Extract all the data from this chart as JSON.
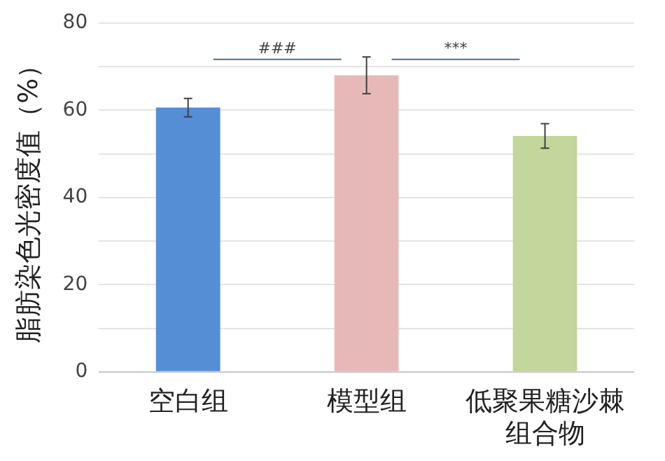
{
  "chart_data": {
    "type": "bar",
    "ylabel": "脂肪染色光密度值（%）",
    "categories": [
      "空白组",
      "模型组",
      "低聚果糖沙棘组合物"
    ],
    "values": [
      60.6,
      68.0,
      54.1
    ],
    "errors": [
      2.1,
      4.2,
      2.8
    ],
    "colors": [
      "#558ed5",
      "#e6b9b8",
      "#c3d69b"
    ],
    "ylim": [
      0,
      80
    ],
    "yticks": [
      0,
      {
        "value": 10,
        "label": null
      },
      20,
      {
        "value": 30,
        "label": null
      },
      40,
      {
        "value": 50,
        "label": null
      },
      60,
      {
        "value": 70,
        "label": null
      },
      80
    ],
    "grid": "y",
    "annotations": [
      "###",
      "***"
    ]
  }
}
